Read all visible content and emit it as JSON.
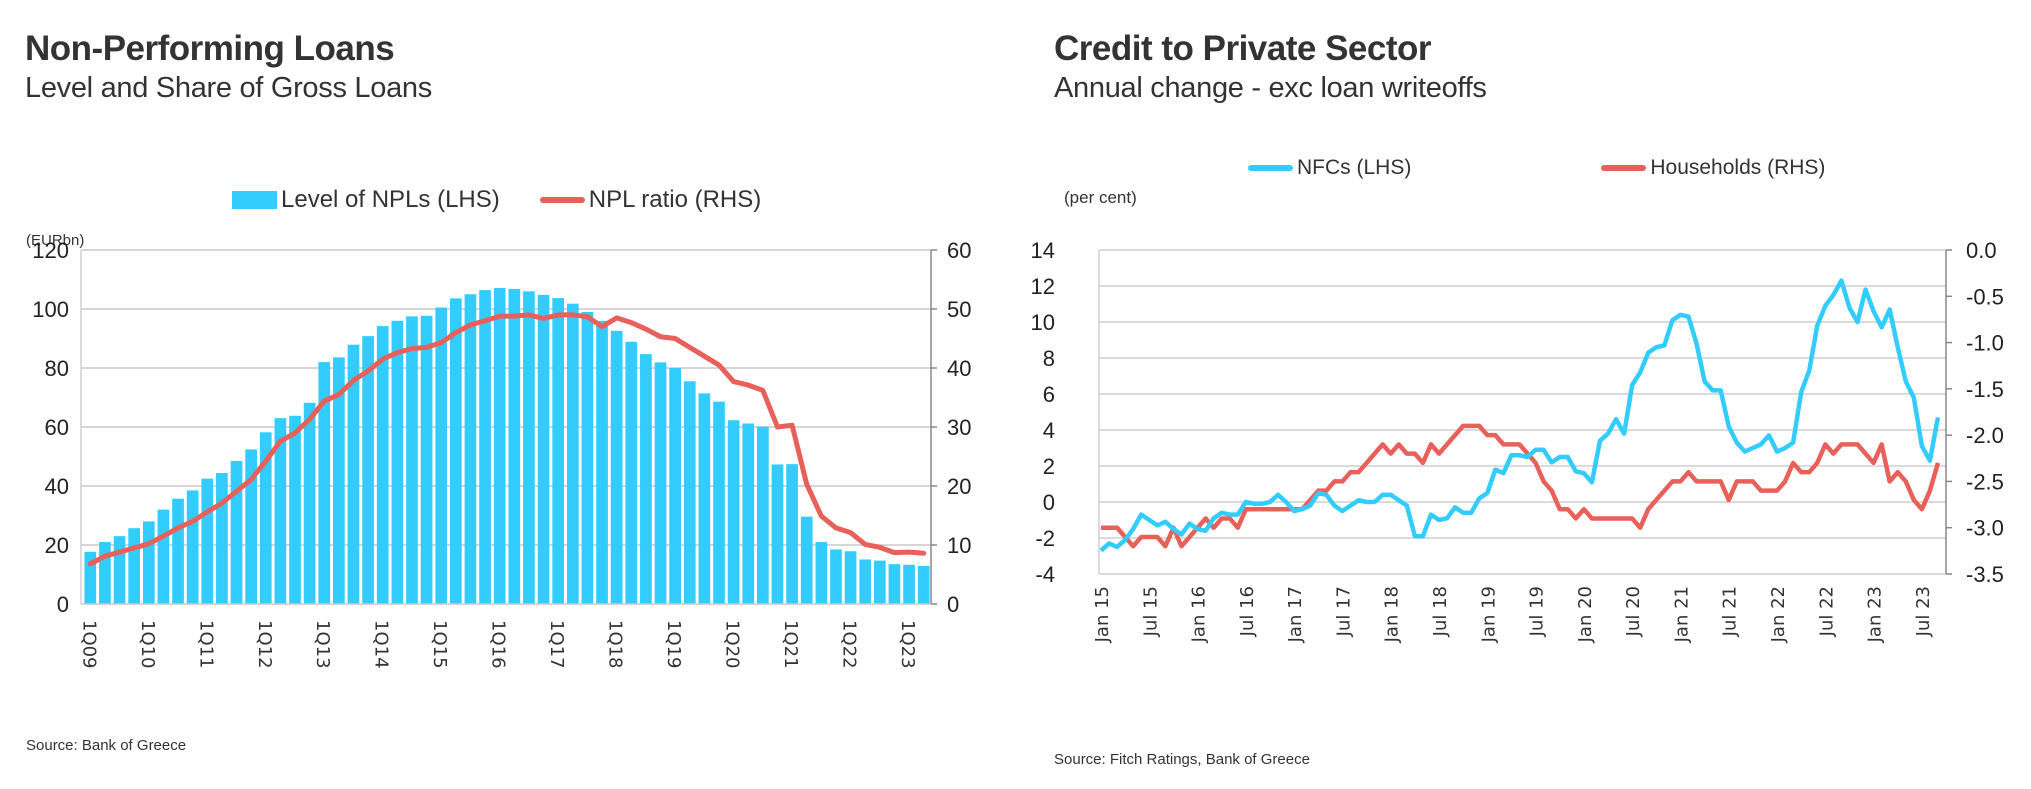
{
  "charts": [
    {
      "title": "Non-Performing Loans",
      "subtitle": "Level and Share of Gross Loans",
      "unit_label": "(EURbn)",
      "source": "Source: Bank of Greece",
      "legend": [
        {
          "label": "Level of NPLs (LHS)",
          "kind": "bar",
          "color": "#33CCFF"
        },
        {
          "label": "NPL ratio (RHS)",
          "kind": "line",
          "color": "#E8605A"
        }
      ]
    },
    {
      "title": "Credit to Private Sector",
      "subtitle": "Annual change - exc loan writeoffs",
      "unit_label": "(per cent)",
      "source": "Source: Fitch Ratings, Bank of Greece",
      "legend": [
        {
          "label": "NFCs (LHS)",
          "kind": "line",
          "color": "#33CCFF"
        },
        {
          "label": "Households (RHS)",
          "kind": "line",
          "color": "#E8605A"
        }
      ]
    }
  ],
  "chart_data": [
    {
      "type": "bar",
      "title": "Non-Performing Loans",
      "subtitle": "Level and Share of Gross Loans",
      "ylabel": "(EURbn)",
      "ylim": [
        0,
        120
      ],
      "yticks": [
        0,
        20,
        40,
        60,
        80,
        100,
        120
      ],
      "y2lim": [
        0,
        60
      ],
      "y2ticks": [
        0,
        10,
        20,
        30,
        40,
        50,
        60
      ],
      "grid": true,
      "legend_position": "top-center",
      "start_quarter": "1Q09",
      "xtick_labels": [
        "1Q09",
        "1Q10",
        "1Q11",
        "1Q12",
        "1Q13",
        "1Q14",
        "1Q15",
        "1Q16",
        "1Q17",
        "1Q18",
        "1Q19",
        "1Q20",
        "1Q21",
        "1Q22",
        "1Q23"
      ],
      "series": [
        {
          "name": "Level of NPLs (LHS)",
          "type": "bar",
          "axis": "left",
          "color": "#33CCFF",
          "values": [
            17.7,
            21,
            23,
            25.7,
            28,
            32,
            35.7,
            38.5,
            42.5,
            44.4,
            48.5,
            52.4,
            58.2,
            63,
            63.8,
            68.2,
            82,
            83.6,
            87.9,
            90.8,
            94.2,
            96,
            97.5,
            97.7,
            100.5,
            103.6,
            105,
            106.4,
            107.1,
            106.8,
            106,
            104.8,
            103.7,
            101.8,
            99,
            96,
            92.6,
            88.9,
            84.7,
            81.9,
            80,
            75.5,
            71.4,
            68.6,
            62.3,
            61.2,
            60.1,
            47.3,
            47.4,
            29.6,
            21,
            18.5,
            17.9,
            15.1,
            14.7,
            13.5,
            13.3,
            12.9
          ]
        },
        {
          "name": "NPL ratio (RHS)",
          "type": "line",
          "axis": "right",
          "color": "#E8605A",
          "values": [
            6.8,
            8.1,
            8.8,
            9.5,
            10.2,
            11.5,
            12.9,
            14,
            15.6,
            17.1,
            19.1,
            21.1,
            24.2,
            27.6,
            29,
            31.3,
            34.4,
            35.5,
            37.9,
            39.5,
            41.5,
            42.6,
            43.3,
            43.5,
            44.3,
            46,
            47.3,
            48,
            48.8,
            48.8,
            49,
            48.4,
            49,
            49,
            48.7,
            47,
            48.5,
            47.7,
            46.6,
            45.3,
            45,
            43.5,
            42,
            40.5,
            37.7,
            37.1,
            36.2,
            30,
            30.3,
            20.3,
            14.9,
            12.9,
            12.1,
            10.1,
            9.6,
            8.7,
            8.8,
            8.6
          ]
        }
      ]
    },
    {
      "type": "line",
      "title": "Credit to Private Sector",
      "subtitle": "Annual change - exc loan writeoffs",
      "ylabel": "(per cent)",
      "ylim": [
        -4,
        14
      ],
      "yticks": [
        -4,
        -2,
        0,
        2,
        4,
        6,
        8,
        10,
        12,
        14
      ],
      "y2lim": [
        -3.5,
        0
      ],
      "y2ticks": [
        "-3.5",
        "-3.0",
        "-2.5",
        "-2.0",
        "-1.5",
        "-1.0",
        "-0.5",
        "0.0"
      ],
      "grid": true,
      "legend_position": "top-center",
      "start_month": "Jan 15",
      "xtick_labels": [
        "Jan 15",
        "Jul 15",
        "Jan 16",
        "Jul 16",
        "Jan 17",
        "Jul 17",
        "Jan 18",
        "Jul 18",
        "Jan 19",
        "Jul 19",
        "Jan 20",
        "Jul 20",
        "Jan 21",
        "Jul 21",
        "Jan 22",
        "Jul 22",
        "Jan 23",
        "Jul 23"
      ],
      "series": [
        {
          "name": "NFCs (LHS)",
          "axis": "left",
          "color": "#33CCFF",
          "values": [
            -2.7,
            -2.3,
            -2.5,
            -2.1,
            -1.5,
            -0.7,
            -1.0,
            -1.3,
            -1.1,
            -1.5,
            -1.8,
            -1.2,
            -1.5,
            -1.6,
            -0.9,
            -0.6,
            -0.7,
            -0.7,
            0.0,
            -0.1,
            -0.1,
            0.0,
            0.4,
            0.0,
            -0.5,
            -0.4,
            -0.2,
            0.5,
            0.4,
            -0.2,
            -0.5,
            -0.2,
            0.1,
            0.0,
            0.0,
            0.4,
            0.4,
            0.1,
            -0.2,
            -1.9,
            -1.9,
            -0.7,
            -1.0,
            -0.9,
            -0.3,
            -0.6,
            -0.6,
            0.2,
            0.5,
            1.8,
            1.6,
            2.6,
            2.6,
            2.5,
            2.9,
            2.9,
            2.2,
            2.5,
            2.5,
            1.7,
            1.6,
            1.1,
            3.4,
            3.8,
            4.6,
            3.8,
            6.5,
            7.2,
            8.3,
            8.6,
            8.7,
            10.1,
            10.4,
            10.3,
            8.8,
            6.7,
            6.2,
            6.2,
            4.2,
            3.3,
            2.8,
            3.0,
            3.2,
            3.7,
            2.8,
            3.0,
            3.3,
            6.1,
            7.3,
            9.8,
            10.9,
            11.5,
            12.3,
            10.8,
            10.0,
            11.8,
            10.6,
            9.7,
            10.7,
            8.6,
            6.7,
            5.8,
            3.1,
            2.3,
            4.7
          ]
        },
        {
          "name": "Households (RHS)",
          "axis": "right",
          "color": "#E8605A",
          "values": [
            -3.0,
            -3.0,
            -3.0,
            -3.1,
            -3.2,
            -3.1,
            -3.1,
            -3.1,
            -3.2,
            -3.0,
            -3.2,
            -3.1,
            -3.0,
            -2.9,
            -3.0,
            -2.9,
            -2.9,
            -3.0,
            -2.8,
            -2.8,
            -2.8,
            -2.8,
            -2.8,
            -2.8,
            -2.8,
            -2.8,
            -2.7,
            -2.6,
            -2.6,
            -2.5,
            -2.5,
            -2.4,
            -2.4,
            -2.3,
            -2.2,
            -2.1,
            -2.2,
            -2.1,
            -2.2,
            -2.2,
            -2.3,
            -2.1,
            -2.2,
            -2.1,
            -2.0,
            -1.9,
            -1.9,
            -1.9,
            -2.0,
            -2.0,
            -2.1,
            -2.1,
            -2.1,
            -2.2,
            -2.3,
            -2.5,
            -2.6,
            -2.8,
            -2.8,
            -2.9,
            -2.8,
            -2.9,
            -2.9,
            -2.9,
            -2.9,
            -2.9,
            -2.9,
            -3.0,
            -2.8,
            -2.7,
            -2.6,
            -2.5,
            -2.5,
            -2.4,
            -2.5,
            -2.5,
            -2.5,
            -2.5,
            -2.7,
            -2.5,
            -2.5,
            -2.5,
            -2.6,
            -2.6,
            -2.6,
            -2.5,
            -2.3,
            -2.4,
            -2.4,
            -2.3,
            -2.1,
            -2.2,
            -2.1,
            -2.1,
            -2.1,
            -2.2,
            -2.3,
            -2.1,
            -2.5,
            -2.4,
            -2.5,
            -2.7,
            -2.8,
            -2.6,
            -2.3
          ]
        }
      ]
    }
  ]
}
